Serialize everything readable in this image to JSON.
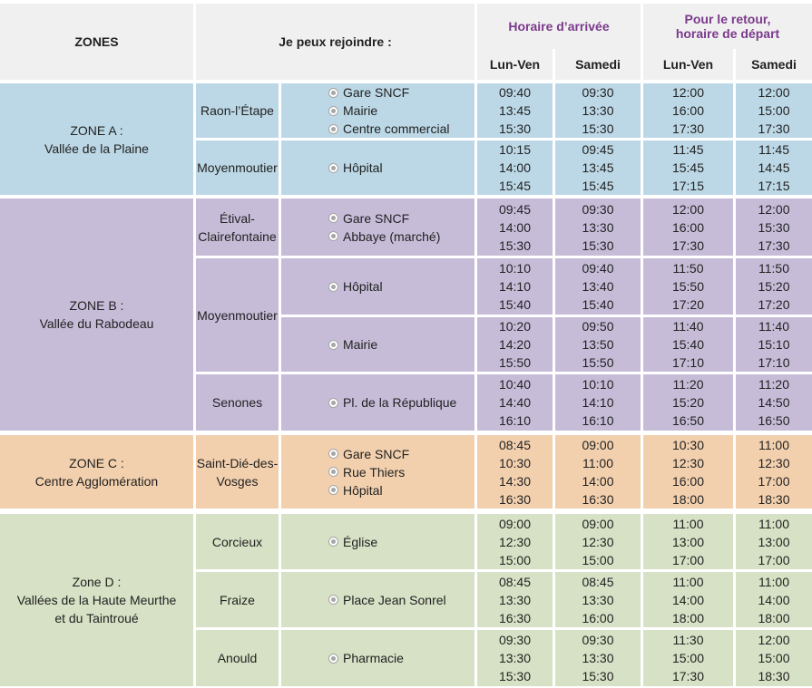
{
  "headers": {
    "zones": "ZONES",
    "join": "Je peux rejoindre :",
    "arrival": "Horaire d’arrivée",
    "return_line1": "Pour le retour,",
    "return_line2": "horaire de départ",
    "weekday": "Lun-Ven",
    "saturday": "Samedi"
  },
  "colors": {
    "zoneA": "#bcd8e6",
    "zoneB": "#c6bcd8",
    "zoneC": "#f2d0ae",
    "zoneD": "#d6e1c5",
    "header_accent": "#7b3a8c"
  },
  "zones": [
    {
      "line1": "ZONE A :",
      "line2": "Vallée de la Plaine",
      "line3": "",
      "towns": [
        {
          "name_line1": "Raon-l’Étape",
          "name_line2": "",
          "stops": [
            "Gare SNCF",
            "Mairie",
            "Centre commercial"
          ],
          "arr_wd": [
            "09:40",
            "13:45",
            "15:30"
          ],
          "arr_sa": [
            "09:30",
            "13:30",
            "15:30"
          ],
          "ret_wd": [
            "12:00",
            "16:00",
            "17:30"
          ],
          "ret_sa": [
            "12:00",
            "15:00",
            "17:30"
          ]
        },
        {
          "name_line1": "Moyenmoutier",
          "name_line2": "",
          "stops": [
            "Hôpital"
          ],
          "arr_wd": [
            "10:15",
            "14:00",
            "15:45"
          ],
          "arr_sa": [
            "09:45",
            "13:45",
            "15:45"
          ],
          "ret_wd": [
            "11:45",
            "15:45",
            "17:15"
          ],
          "ret_sa": [
            "11:45",
            "14:45",
            "17:15"
          ]
        }
      ]
    },
    {
      "line1": "ZONE B :",
      "line2": "Vallée du Rabodeau",
      "line3": "",
      "towns": [
        {
          "name_line1": "Étival-",
          "name_line2": "Clairefontaine",
          "stops": [
            "Gare SNCF",
            "Abbaye (marché)"
          ],
          "arr_wd": [
            "09:45",
            "14:00",
            "15:30"
          ],
          "arr_sa": [
            "09:30",
            "13:30",
            "15:30"
          ],
          "ret_wd": [
            "12:00",
            "16:00",
            "17:30"
          ],
          "ret_sa": [
            "12:00",
            "15:30",
            "17:30"
          ]
        },
        {
          "name_line1": "Moyenmoutier",
          "name_line2": "",
          "stops": [
            "Hôpital"
          ],
          "arr_wd": [
            "10:10",
            "14:10",
            "15:40"
          ],
          "arr_sa": [
            "09:40",
            "13:40",
            "15:40"
          ],
          "ret_wd": [
            "11:50",
            "15:50",
            "17:20"
          ],
          "ret_sa": [
            "11:50",
            "15:20",
            "17:20"
          ]
        },
        {
          "name_line1": "",
          "name_line2": "",
          "stops": [
            "Mairie"
          ],
          "arr_wd": [
            "10:20",
            "14:20",
            "15:50"
          ],
          "arr_sa": [
            "09:50",
            "13:50",
            "15:50"
          ],
          "ret_wd": [
            "11:40",
            "15:40",
            "17:10"
          ],
          "ret_sa": [
            "11:40",
            "15:10",
            "17:10"
          ]
        },
        {
          "name_line1": "Senones",
          "name_line2": "",
          "stops": [
            "Pl. de la République"
          ],
          "arr_wd": [
            "10:40",
            "14:40",
            "16:10"
          ],
          "arr_sa": [
            "10:10",
            "14:10",
            "16:10"
          ],
          "ret_wd": [
            "11:20",
            "15:20",
            "16:50"
          ],
          "ret_sa": [
            "11:20",
            "14:50",
            "16:50"
          ]
        }
      ]
    },
    {
      "line1": "ZONE C :",
      "line2": "Centre Agglomération",
      "line3": "",
      "towns": [
        {
          "name_line1": "Saint-Dié-des-",
          "name_line2": "Vosges",
          "stops": [
            "Gare SNCF",
            "Rue Thiers",
            "Hôpital"
          ],
          "arr_wd": [
            "08:45",
            "10:30",
            "14:30",
            "16:30"
          ],
          "arr_sa": [
            "09:00",
            "11:00",
            "14:00",
            "16:30"
          ],
          "ret_wd": [
            "10:30",
            "12:30",
            "16:00",
            "18:00"
          ],
          "ret_sa": [
            "11:00",
            "12:30",
            "17:00",
            "18:30"
          ]
        }
      ]
    },
    {
      "line1": "Zone D :",
      "line2": "Vallées de la Haute Meurthe",
      "line3": "et du Taintroué",
      "towns": [
        {
          "name_line1": "Corcieux",
          "name_line2": "",
          "stops": [
            "Église"
          ],
          "arr_wd": [
            "09:00",
            "12:30",
            "15:00"
          ],
          "arr_sa": [
            "09:00",
            "12:30",
            "15:00"
          ],
          "ret_wd": [
            "11:00",
            "13:00",
            "17:00"
          ],
          "ret_sa": [
            "11:00",
            "13:00",
            "17:00"
          ]
        },
        {
          "name_line1": "Fraize",
          "name_line2": "",
          "stops": [
            "Place Jean Sonrel"
          ],
          "arr_wd": [
            "08:45",
            "13:30",
            "16:30"
          ],
          "arr_sa": [
            "08:45",
            "13:30",
            "16:00"
          ],
          "ret_wd": [
            "11:00",
            "14:00",
            "18:00"
          ],
          "ret_sa": [
            "11:00",
            "14:00",
            "18:00"
          ]
        },
        {
          "name_line1": "Anould",
          "name_line2": "",
          "stops": [
            "Pharmacie"
          ],
          "arr_wd": [
            "09:30",
            "13:30",
            "15:30"
          ],
          "arr_sa": [
            "09:30",
            "13:30",
            "15:30"
          ],
          "ret_wd": [
            "11:30",
            "15:00",
            "17:30"
          ],
          "ret_sa": [
            "12:00",
            "15:00",
            "18:30"
          ]
        }
      ]
    }
  ]
}
